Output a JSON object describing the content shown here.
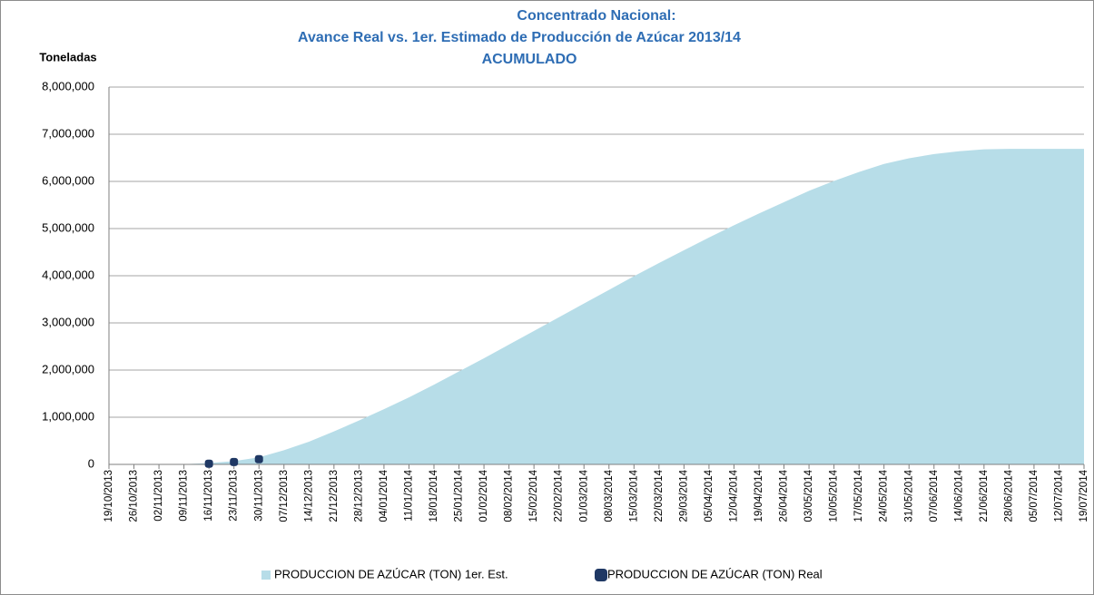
{
  "chart_data": {
    "type": "area",
    "title": [
      "Concentrado Nacional:",
      "Avance Real vs. 1er. Estimado de Producción de Azúcar 2013/14",
      "ACUMULADO"
    ],
    "y_label": "Toneladas",
    "categories": [
      "19/10/2013",
      "26/10/2013",
      "02/11/2013",
      "09/11/2013",
      "16/11/2013",
      "23/11/2013",
      "30/11/2013",
      "07/12/2013",
      "14/12/2013",
      "21/12/2013",
      "28/12/2013",
      "04/01/2014",
      "11/01/2014",
      "18/01/2014",
      "25/01/2014",
      "01/02/2014",
      "08/02/2014",
      "15/02/2014",
      "22/02/2014",
      "01/03/2014",
      "08/03/2014",
      "15/03/2014",
      "22/03/2014",
      "29/03/2014",
      "05/04/2014",
      "12/04/2014",
      "19/04/2014",
      "26/04/2014",
      "03/05/2014",
      "10/05/2014",
      "17/05/2014",
      "24/05/2014",
      "31/05/2014",
      "07/06/2014",
      "14/06/2014",
      "21/06/2014",
      "28/06/2014",
      "05/07/2014",
      "12/07/2014",
      "19/07/2014"
    ],
    "series": [
      {
        "name": "PRODUCCION DE AZÚCAR (TON) 1er. Est.",
        "color": "#b7dde8",
        "kind": "area",
        "values": [
          0,
          0,
          0,
          5000,
          30000,
          70000,
          150000,
          300000,
          480000,
          700000,
          930000,
          1170000,
          1420000,
          1690000,
          1970000,
          2250000,
          2540000,
          2830000,
          3120000,
          3410000,
          3700000,
          3990000,
          4270000,
          4540000,
          4810000,
          5070000,
          5320000,
          5560000,
          5800000,
          6010000,
          6200000,
          6370000,
          6490000,
          6580000,
          6640000,
          6680000,
          6690000,
          6690000,
          6690000,
          6690000
        ]
      },
      {
        "name": "PRODUCCION DE AZÚCAR (TON) Real",
        "color": "#1f3864",
        "kind": "marker",
        "values": [
          null,
          null,
          null,
          null,
          15000,
          50000,
          110000,
          null,
          null,
          null,
          null,
          null,
          null,
          null,
          null,
          null,
          null,
          null,
          null,
          null,
          null,
          null,
          null,
          null,
          null,
          null,
          null,
          null,
          null,
          null,
          null,
          null,
          null,
          null,
          null,
          null,
          null,
          null,
          null,
          null
        ]
      }
    ],
    "ylim": [
      0,
      8000000
    ],
    "yticks": [
      0,
      {
        "value": 1000000,
        "label": "1,000,000"
      },
      {
        "value": 2000000,
        "label": "2,000,000"
      },
      {
        "value": 3000000,
        "label": "3,000,000"
      },
      {
        "value": 4000000,
        "label": "4,000,000"
      },
      {
        "value": 5000000,
        "label": "5,000,000"
      },
      {
        "value": 6000000,
        "label": "6,000,000"
      },
      {
        "value": 7000000,
        "label": "7,000,000"
      },
      {
        "value": 8000000,
        "label": "8,000,000"
      }
    ],
    "grid": true,
    "legend": "bottom"
  }
}
